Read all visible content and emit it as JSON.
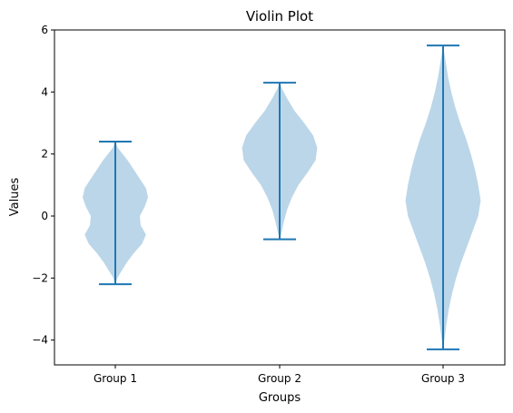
{
  "chart_data": {
    "type": "violin",
    "title": "Violin Plot",
    "xlabel": "Groups",
    "ylabel": "Values",
    "categories": [
      "Group 1",
      "Group 2",
      "Group 3"
    ],
    "ylim": [
      -4.8,
      6
    ],
    "yticks": [
      -4,
      -2,
      0,
      2,
      4,
      6
    ],
    "ytick_labels": [
      "−4",
      "−2",
      "0",
      "2",
      "4",
      "6"
    ],
    "colors": {
      "body": "#1f77b4",
      "body_opacity": 0.3,
      "lines": "#1f77b4"
    },
    "violins": [
      {
        "name": "Group 1",
        "min": -2.2,
        "max": 2.4,
        "density": [
          [
            2.4,
            0.0
          ],
          [
            2.2,
            0.06
          ],
          [
            2.0,
            0.18
          ],
          [
            1.8,
            0.3
          ],
          [
            1.5,
            0.45
          ],
          [
            1.2,
            0.6
          ],
          [
            0.9,
            0.75
          ],
          [
            0.6,
            0.8
          ],
          [
            0.3,
            0.72
          ],
          [
            0.0,
            0.6
          ],
          [
            -0.3,
            0.62
          ],
          [
            -0.6,
            0.75
          ],
          [
            -0.9,
            0.65
          ],
          [
            -1.2,
            0.45
          ],
          [
            -1.5,
            0.28
          ],
          [
            -1.8,
            0.14
          ],
          [
            -2.0,
            0.05
          ],
          [
            -2.2,
            0.0
          ]
        ]
      },
      {
        "name": "Group 2",
        "min": -0.75,
        "max": 4.3,
        "density": [
          [
            4.3,
            0.0
          ],
          [
            4.1,
            0.06
          ],
          [
            3.8,
            0.18
          ],
          [
            3.4,
            0.36
          ],
          [
            3.0,
            0.6
          ],
          [
            2.6,
            0.82
          ],
          [
            2.2,
            0.92
          ],
          [
            1.8,
            0.88
          ],
          [
            1.4,
            0.68
          ],
          [
            1.0,
            0.46
          ],
          [
            0.6,
            0.3
          ],
          [
            0.2,
            0.18
          ],
          [
            -0.2,
            0.1
          ],
          [
            -0.5,
            0.05
          ],
          [
            -0.75,
            0.0
          ]
        ]
      },
      {
        "name": "Group 3",
        "min": -4.3,
        "max": 5.5,
        "density": [
          [
            5.5,
            0.0
          ],
          [
            5.0,
            0.06
          ],
          [
            4.5,
            0.12
          ],
          [
            4.0,
            0.2
          ],
          [
            3.5,
            0.3
          ],
          [
            3.0,
            0.42
          ],
          [
            2.5,
            0.56
          ],
          [
            2.0,
            0.68
          ],
          [
            1.5,
            0.78
          ],
          [
            1.0,
            0.86
          ],
          [
            0.5,
            0.92
          ],
          [
            0.0,
            0.86
          ],
          [
            -0.5,
            0.72
          ],
          [
            -1.0,
            0.58
          ],
          [
            -1.5,
            0.44
          ],
          [
            -2.0,
            0.32
          ],
          [
            -2.5,
            0.22
          ],
          [
            -3.0,
            0.14
          ],
          [
            -3.5,
            0.08
          ],
          [
            -4.0,
            0.03
          ],
          [
            -4.3,
            0.0
          ]
        ]
      }
    ]
  }
}
